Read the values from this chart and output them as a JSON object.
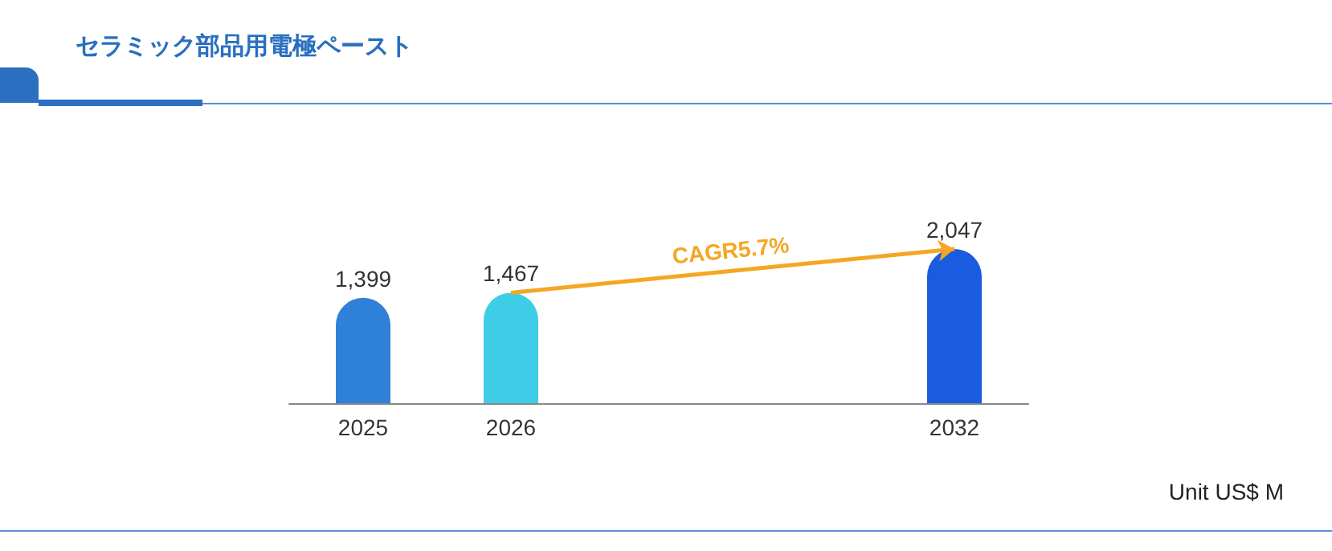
{
  "chart_data": {
    "type": "bar",
    "title": "セラミック部品用電極ペースト",
    "categories": [
      "2025",
      "2026",
      null,
      null,
      "2032"
    ],
    "values": [
      1399,
      1467,
      null,
      null,
      2047
    ],
    "value_labels": [
      "1,399",
      "1,467",
      null,
      null,
      "2,047"
    ],
    "colors": [
      "#2f80d8",
      "#3ecde6",
      null,
      null,
      "#1a5ce0"
    ],
    "annotations": [
      "CAGR5.7%",
      "Unit US$ M"
    ]
  }
}
